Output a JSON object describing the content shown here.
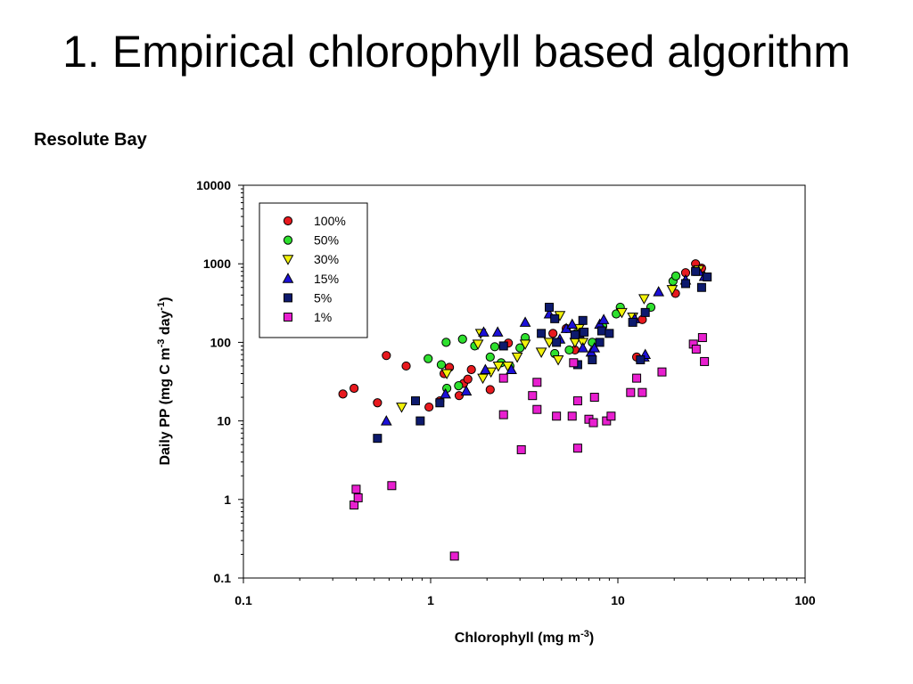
{
  "title": "1. Empirical chlorophyll based algorithm",
  "subtitle": "Resolute Bay",
  "chart_data": {
    "type": "scatter",
    "xscale": "log",
    "yscale": "log",
    "xlim": [
      0.1,
      100
    ],
    "ylim": [
      0.1,
      10000
    ],
    "xticks": [
      "0.1",
      "1",
      "10",
      "100"
    ],
    "yticks": [
      "0.1",
      "1",
      "10",
      "100",
      "1000",
      "10000"
    ],
    "xlabel": {
      "main": "Chlorophyll (mg m",
      "sup": "-3",
      "end": ")"
    },
    "ylabel": {
      "main": "Daily PP (mg C m",
      "sup1": "-3",
      "mid": " day",
      "sup2": "-1",
      "end": ")"
    },
    "grid": false,
    "legend_position": "top-left",
    "series": [
      {
        "name": "100%",
        "marker": "circle",
        "color": "#e8191e",
        "points": [
          [
            0.34,
            22
          ],
          [
            0.39,
            26
          ],
          [
            0.52,
            17
          ],
          [
            0.58,
            68
          ],
          [
            0.74,
            50
          ],
          [
            0.98,
            15
          ],
          [
            1.12,
            18
          ],
          [
            1.18,
            40
          ],
          [
            1.26,
            48
          ],
          [
            1.42,
            21
          ],
          [
            1.5,
            30
          ],
          [
            1.58,
            34
          ],
          [
            1.65,
            45
          ],
          [
            2.08,
            25
          ],
          [
            2.6,
            98
          ],
          [
            4.5,
            130
          ],
          [
            5.3,
            150
          ],
          [
            5.9,
            80
          ],
          [
            12.6,
            65
          ],
          [
            13.5,
            195
          ],
          [
            20.3,
            420
          ],
          [
            23,
            770
          ],
          [
            26,
            1000
          ],
          [
            28,
            880
          ]
        ]
      },
      {
        "name": "50%",
        "marker": "circle",
        "color": "#2ee02e",
        "points": [
          [
            0.97,
            62
          ],
          [
            1.14,
            52
          ],
          [
            1.21,
            100
          ],
          [
            1.22,
            26
          ],
          [
            1.41,
            28
          ],
          [
            1.48,
            110
          ],
          [
            1.72,
            90
          ],
          [
            2.08,
            65
          ],
          [
            2.2,
            88
          ],
          [
            2.38,
            55
          ],
          [
            2.65,
            50
          ],
          [
            3.0,
            85
          ],
          [
            3.2,
            115
          ],
          [
            4.6,
            72
          ],
          [
            5.5,
            80
          ],
          [
            6.0,
            130
          ],
          [
            7.3,
            100
          ],
          [
            8.3,
            160
          ],
          [
            9.8,
            230
          ],
          [
            10.3,
            280
          ],
          [
            15,
            280
          ],
          [
            19.7,
            600
          ],
          [
            20.4,
            700
          ],
          [
            26,
            820
          ]
        ]
      },
      {
        "name": "30%",
        "marker": "triangle-down",
        "color": "#f2f20a",
        "points": [
          [
            0.7,
            15
          ],
          [
            1.22,
            40
          ],
          [
            1.79,
            95
          ],
          [
            1.85,
            130
          ],
          [
            1.9,
            35
          ],
          [
            2.1,
            42
          ],
          [
            2.3,
            50
          ],
          [
            2.58,
            50
          ],
          [
            2.9,
            65
          ],
          [
            3.2,
            95
          ],
          [
            3.9,
            75
          ],
          [
            4.3,
            100
          ],
          [
            4.8,
            60
          ],
          [
            4.9,
            220
          ],
          [
            5.9,
            100
          ],
          [
            6.2,
            150
          ],
          [
            6.5,
            100
          ],
          [
            10.5,
            240
          ],
          [
            12.0,
            210
          ],
          [
            13.8,
            360
          ],
          [
            19.5,
            470
          ],
          [
            27,
            840
          ]
        ]
      },
      {
        "name": "15%",
        "marker": "triangle-up",
        "color": "#1c10d8",
        "points": [
          [
            0.58,
            10
          ],
          [
            1.2,
            22
          ],
          [
            1.55,
            24
          ],
          [
            1.92,
            135
          ],
          [
            1.96,
            45
          ],
          [
            2.28,
            135
          ],
          [
            2.7,
            45
          ],
          [
            3.2,
            180
          ],
          [
            4.3,
            230
          ],
          [
            4.9,
            110
          ],
          [
            5.3,
            150
          ],
          [
            5.7,
            170
          ],
          [
            6.2,
            130
          ],
          [
            6.5,
            85
          ],
          [
            7.2,
            75
          ],
          [
            7.5,
            85
          ],
          [
            8.0,
            170
          ],
          [
            8.4,
            195
          ],
          [
            12.3,
            200
          ],
          [
            13.8,
            65
          ],
          [
            14.0,
            70
          ],
          [
            16.5,
            440
          ],
          [
            23,
            620
          ],
          [
            27,
            800
          ],
          [
            29,
            690
          ]
        ]
      },
      {
        "name": "5%",
        "marker": "square",
        "color": "#0d1a6e",
        "points": [
          [
            0.52,
            6
          ],
          [
            0.83,
            18
          ],
          [
            0.88,
            10
          ],
          [
            1.12,
            17
          ],
          [
            2.45,
            90
          ],
          [
            3.9,
            130
          ],
          [
            4.3,
            280
          ],
          [
            4.6,
            200
          ],
          [
            4.7,
            100
          ],
          [
            5.9,
            125
          ],
          [
            6.1,
            52
          ],
          [
            6.5,
            190
          ],
          [
            6.6,
            135
          ],
          [
            7.3,
            60
          ],
          [
            8.0,
            100
          ],
          [
            8.2,
            140
          ],
          [
            9.0,
            130
          ],
          [
            12.0,
            180
          ],
          [
            13.2,
            60
          ],
          [
            14.0,
            240
          ],
          [
            23,
            560
          ],
          [
            26,
            800
          ],
          [
            28,
            500
          ],
          [
            30,
            680
          ]
        ]
      },
      {
        "name": "1%",
        "marker": "square",
        "color": "#e81fcf",
        "points": [
          [
            0.39,
            0.85
          ],
          [
            0.4,
            1.35
          ],
          [
            0.41,
            1.05
          ],
          [
            0.62,
            1.5
          ],
          [
            1.34,
            0.19
          ],
          [
            2.45,
            12
          ],
          [
            2.45,
            35
          ],
          [
            3.05,
            4.3
          ],
          [
            3.5,
            21
          ],
          [
            3.7,
            14
          ],
          [
            3.7,
            31
          ],
          [
            4.7,
            11.5
          ],
          [
            5.7,
            11.5
          ],
          [
            5.8,
            55
          ],
          [
            6.1,
            4.5
          ],
          [
            6.1,
            18
          ],
          [
            7.0,
            10.5
          ],
          [
            7.4,
            9.5
          ],
          [
            7.5,
            20
          ],
          [
            8.7,
            10
          ],
          [
            9.2,
            11.5
          ],
          [
            11.7,
            23
          ],
          [
            12.6,
            35
          ],
          [
            13.5,
            23
          ],
          [
            17.2,
            42
          ],
          [
            25.3,
            95
          ],
          [
            26.2,
            82
          ],
          [
            28.3,
            115
          ],
          [
            29.0,
            57
          ]
        ]
      }
    ]
  }
}
